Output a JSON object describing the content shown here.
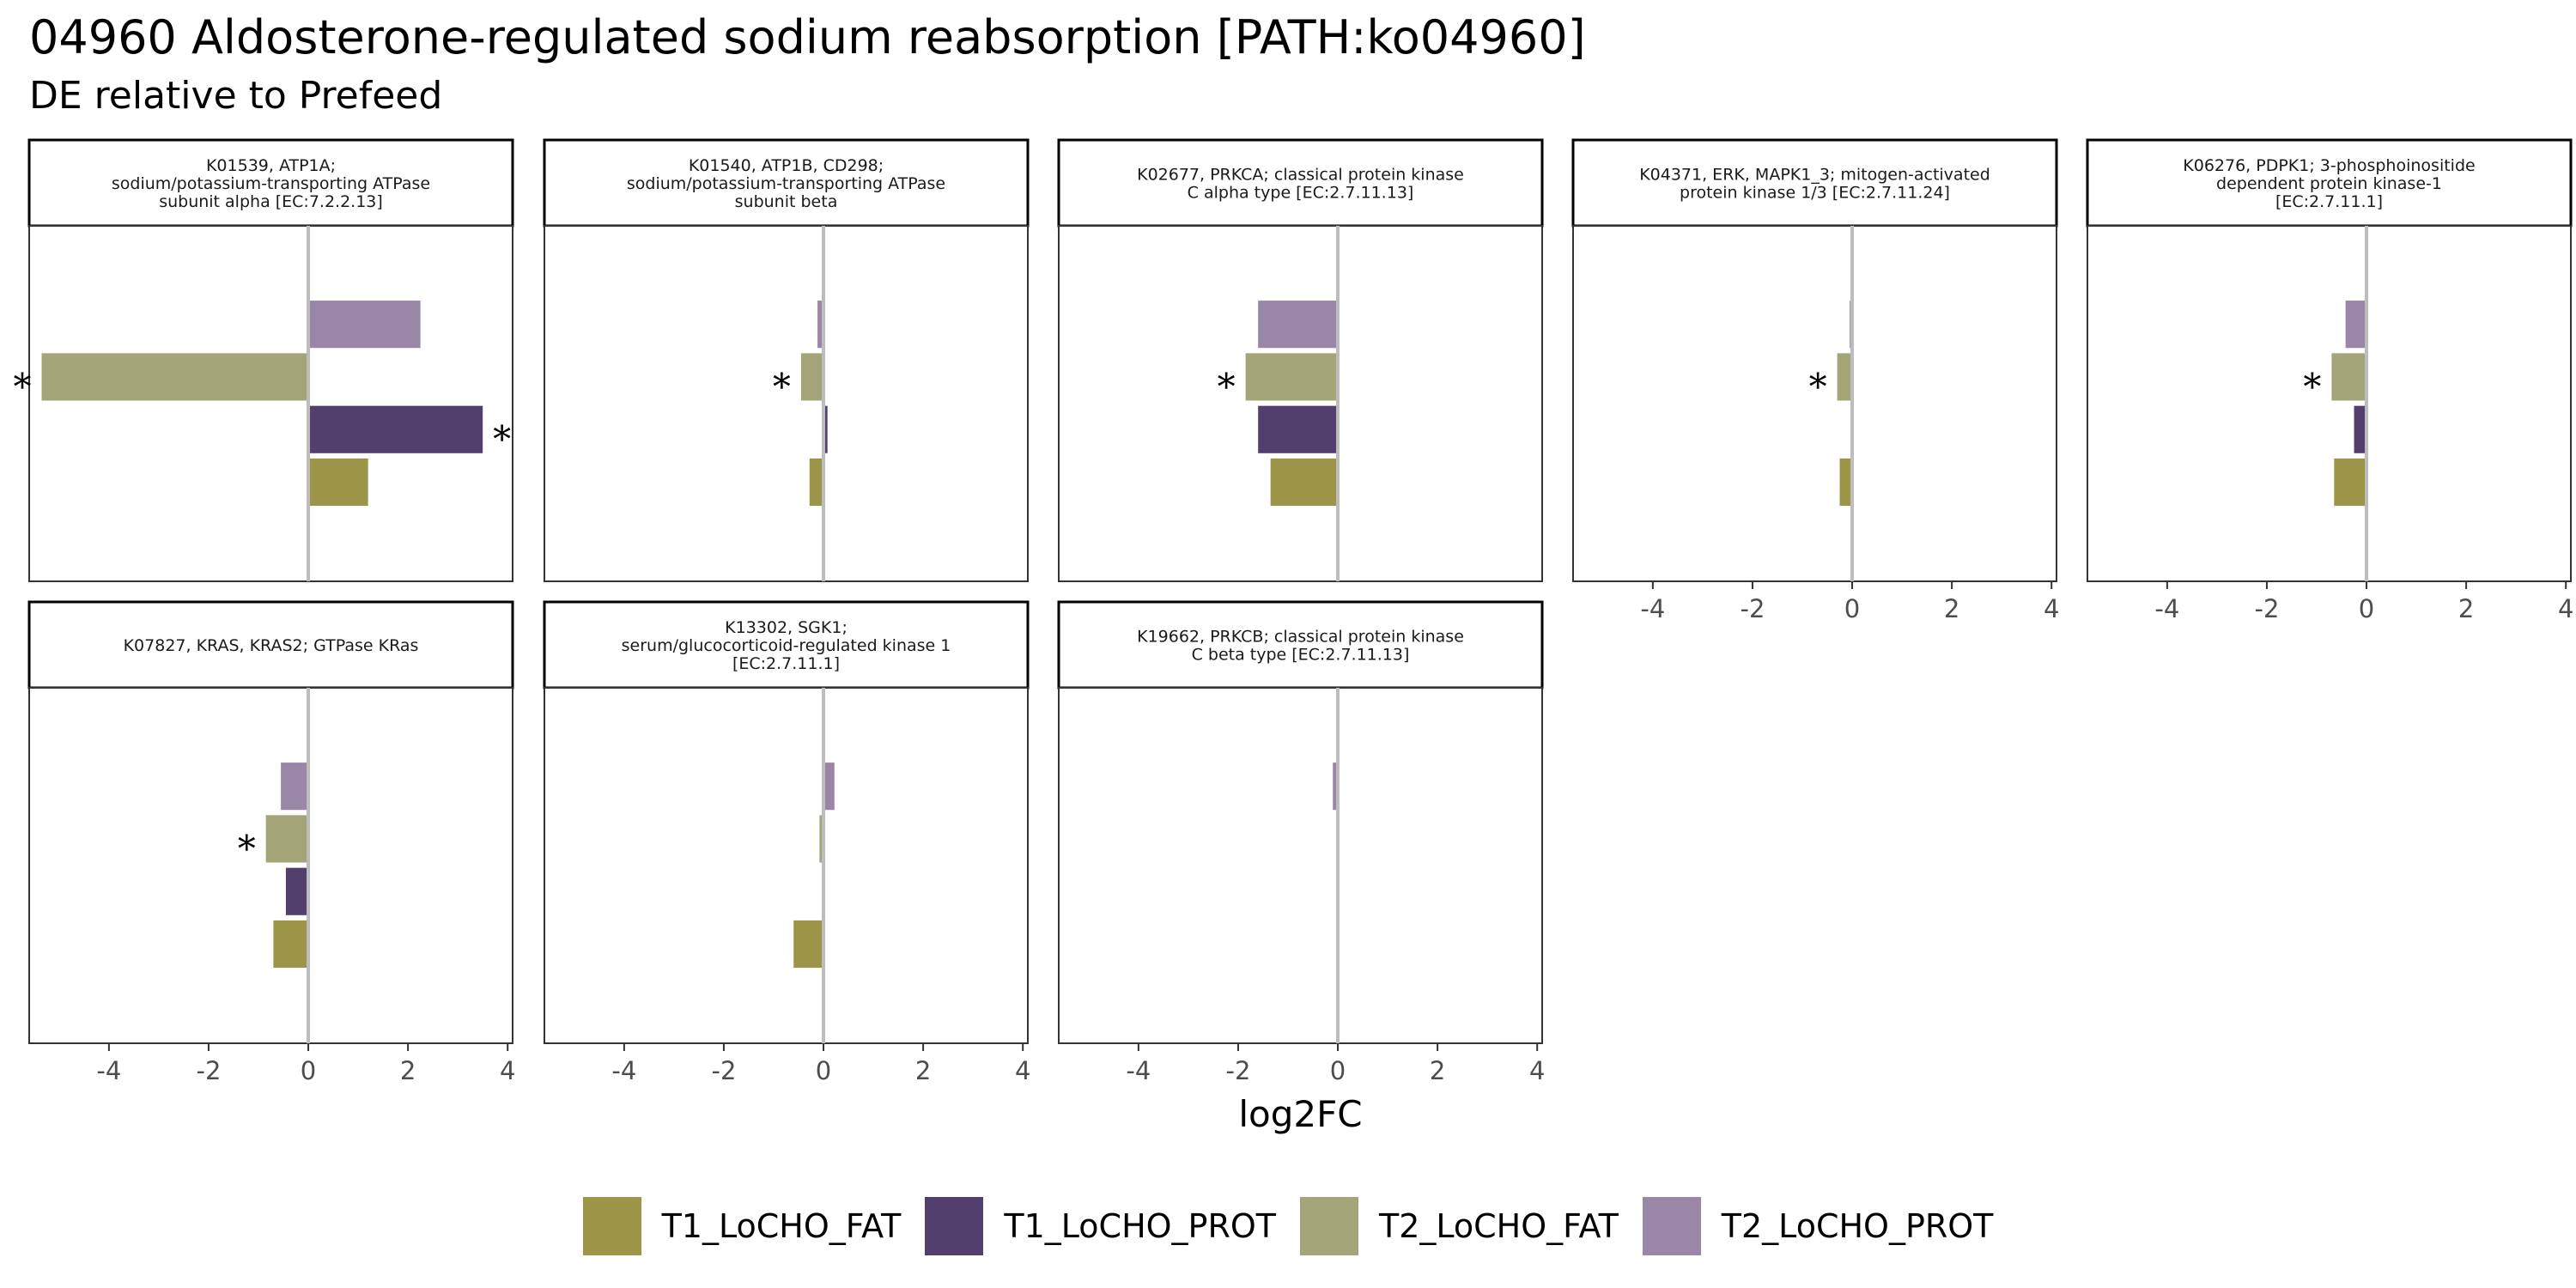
{
  "title": "04960 Aldosterone-regulated sodium reabsorption [PATH:ko04960]",
  "subtitle": "DE relative to Prefeed",
  "colors": {
    "T1_LoCHO_FAT": "#9c9446",
    "T1_LoCHO_PROT": "#533f6e",
    "T2_LoCHO_FAT": "#a3a477",
    "T2_LoCHO_PROT": "#9a86a6"
  },
  "chart_data": {
    "type": "bar",
    "orientation": "horizontal",
    "xlabel": "log2FC",
    "xlim": [
      -5.6,
      4.1
    ],
    "x_ticks": [
      "-4",
      "-2",
      "0",
      "2",
      "4"
    ],
    "x_tick_values": [
      -4,
      -2,
      0,
      2,
      4
    ],
    "legend_position": "bottom",
    "series_order_top_to_bottom": [
      "T2_LoCHO_PROT",
      "T2_LoCHO_FAT",
      "T1_LoCHO_PROT",
      "T1_LoCHO_FAT"
    ],
    "legend": [
      "T1_LoCHO_FAT",
      "T1_LoCHO_PROT",
      "T2_LoCHO_FAT",
      "T2_LoCHO_PROT"
    ],
    "panels": [
      {
        "label": [
          "K01539, ATP1A;",
          "sodium/potassium-transporting ATPase",
          "subunit alpha [EC:7.2.2.13]"
        ],
        "values": {
          "T2_LoCHO_PROT": 2.25,
          "T2_LoCHO_FAT": -5.35,
          "T1_LoCHO_PROT": 3.5,
          "T1_LoCHO_FAT": 1.2
        },
        "significant": [
          "T2_LoCHO_FAT",
          "T1_LoCHO_PROT"
        ],
        "show_x_axis": false
      },
      {
        "label": [
          "K01540, ATP1B, CD298;",
          "sodium/potassium-transporting ATPase",
          "subunit beta"
        ],
        "values": {
          "T2_LoCHO_PROT": -0.12,
          "T2_LoCHO_FAT": -0.45,
          "T1_LoCHO_PROT": 0.08,
          "T1_LoCHO_FAT": -0.28
        },
        "significant": [
          "T2_LoCHO_FAT"
        ],
        "show_x_axis": false
      },
      {
        "label": [
          "K02677, PRKCA; classical protein kinase",
          "C alpha type [EC:2.7.11.13]"
        ],
        "values": {
          "T2_LoCHO_PROT": -1.6,
          "T2_LoCHO_FAT": -1.85,
          "T1_LoCHO_PROT": -1.6,
          "T1_LoCHO_FAT": -1.35
        },
        "significant": [
          "T2_LoCHO_FAT"
        ],
        "show_x_axis": false
      },
      {
        "label": [
          "K04371, ERK, MAPK1_3; mitogen-activated",
          "protein kinase 1/3 [EC:2.7.11.24]"
        ],
        "values": {
          "T2_LoCHO_PROT": -0.05,
          "T2_LoCHO_FAT": -0.3,
          "T1_LoCHO_PROT": 0.0,
          "T1_LoCHO_FAT": -0.25
        },
        "significant": [
          "T2_LoCHO_FAT"
        ],
        "show_x_axis": true
      },
      {
        "label": [
          "K06276, PDPK1; 3-phosphoinositide",
          "dependent protein kinase-1",
          "[EC:2.7.11.1]"
        ],
        "values": {
          "T2_LoCHO_PROT": -0.42,
          "T2_LoCHO_FAT": -0.7,
          "T1_LoCHO_PROT": -0.25,
          "T1_LoCHO_FAT": -0.65
        },
        "significant": [
          "T2_LoCHO_FAT"
        ],
        "show_x_axis": true
      },
      {
        "label": [
          "K07827, KRAS, KRAS2; GTPase KRas"
        ],
        "values": {
          "T2_LoCHO_PROT": -0.55,
          "T2_LoCHO_FAT": -0.85,
          "T1_LoCHO_PROT": -0.45,
          "T1_LoCHO_FAT": -0.7
        },
        "significant": [
          "T2_LoCHO_FAT"
        ],
        "show_x_axis": true
      },
      {
        "label": [
          "K13302, SGK1;",
          "serum/glucocorticoid-regulated kinase 1",
          "[EC:2.7.11.1]"
        ],
        "values": {
          "T2_LoCHO_PROT": 0.22,
          "T2_LoCHO_FAT": -0.08,
          "T1_LoCHO_PROT": 0.0,
          "T1_LoCHO_FAT": -0.6
        },
        "significant": [],
        "show_x_axis": true
      },
      {
        "label": [
          "K19662, PRKCB; classical protein kinase",
          "C beta type [EC:2.7.11.13]"
        ],
        "values": {
          "T2_LoCHO_PROT": -0.1,
          "T2_LoCHO_FAT": 0.0,
          "T1_LoCHO_PROT": 0.0,
          "T1_LoCHO_FAT": 0.0
        },
        "significant": [],
        "show_x_axis": true
      }
    ]
  }
}
